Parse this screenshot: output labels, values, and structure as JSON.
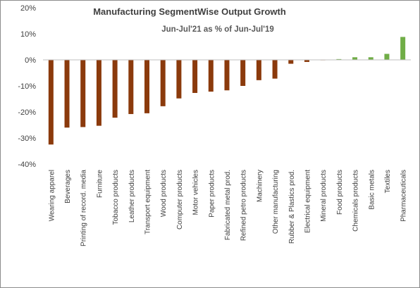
{
  "chart_data": {
    "type": "bar",
    "title": "Manufacturing SegmentWise Output Growth",
    "subtitle": "Jun-Jul'21  as % of Jun-Jul'19",
    "xlabel": "",
    "ylabel": "",
    "ylim": [
      -40,
      20
    ],
    "yticks": [
      "20%",
      "10%",
      "0%",
      "-10%",
      "-20%",
      "-30%",
      "-40%"
    ],
    "ytick_values": [
      20,
      10,
      0,
      -10,
      -20,
      -30,
      -40
    ],
    "grid": false,
    "legend": "none",
    "colors": {
      "negative": "#8b3a0c",
      "positive": "#70ad47",
      "axis": "#bfbfbf",
      "frame": "#8c8c8c"
    },
    "categories": [
      "Wearing apparel",
      "Beverages",
      "Printing of record. media",
      "Furniture",
      "Tobacco products",
      "Leather products",
      "Transport equipment",
      "Wood products",
      "Computer products",
      "Motor  vehicles",
      "Paper products",
      "Fabricated metal prod.",
      "Refined petro products",
      "Machinery",
      "Other manufacturing",
      "Rubber & Plastics prod.",
      "Electrical equipment",
      "Mineral products",
      "Food products",
      "Chemicals products",
      "Basic metals",
      "Textiles",
      "Pharmaceuticals"
    ],
    "values": [
      -32.5,
      -26,
      -25.8,
      -25.3,
      -22.2,
      -20.8,
      -20.5,
      -17.8,
      -14.8,
      -12.7,
      -12.2,
      -11.7,
      -10,
      -7.8,
      -7.2,
      -1.5,
      -0.8,
      -0.1,
      0.3,
      1,
      1,
      2.3,
      8.8
    ]
  }
}
